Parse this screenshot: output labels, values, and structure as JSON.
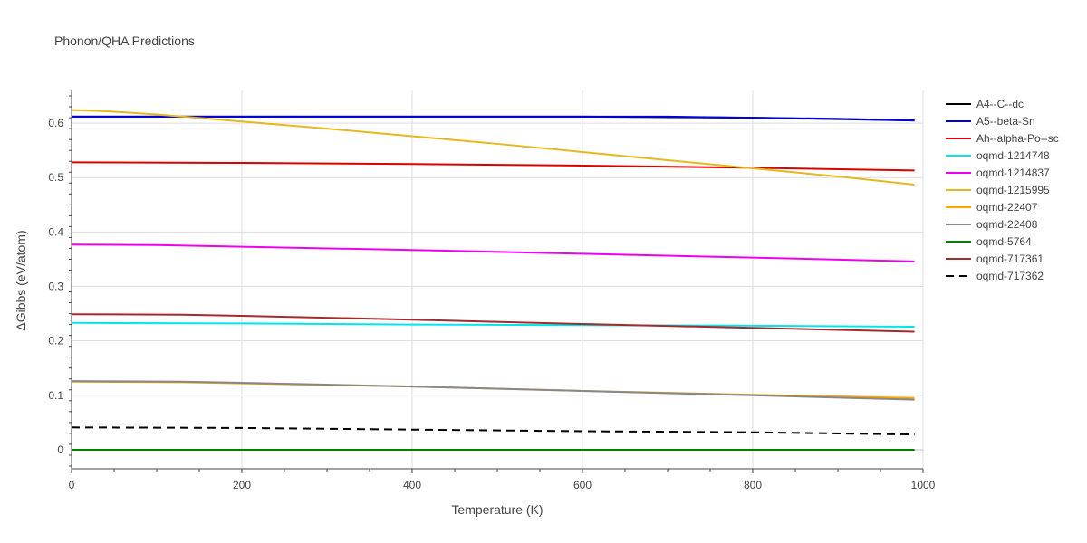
{
  "chart_data": {
    "type": "line",
    "title": "Phonon/QHA Predictions",
    "xlabel": "Temperature (K)",
    "ylabel": "ΔGibbs (eV/atom)",
    "xlim": [
      0,
      1000
    ],
    "ylim": [
      -0.035,
      0.66
    ],
    "x_ticks": [
      0,
      200,
      400,
      600,
      800,
      1000
    ],
    "y_ticks": [
      0,
      0.1,
      0.2,
      0.3,
      0.4,
      0.5,
      0.6
    ],
    "x_tick_labels": [
      "0",
      "200",
      "400",
      "600",
      "800",
      "1000"
    ],
    "y_tick_labels": [
      "0",
      "0.1",
      "0.2",
      "0.3",
      "0.4",
      "0.5",
      "0.6"
    ],
    "grid": true,
    "legend_position": "right",
    "series": [
      {
        "name": "A4--C--dc",
        "color": "#000000",
        "dash": "solid",
        "x": [
          0,
          200,
          400,
          600,
          800,
          990
        ],
        "y": [
          0.612,
          0.612,
          0.612,
          0.612,
          0.61,
          0.605
        ]
      },
      {
        "name": "A5--beta-Sn",
        "color": "#0000dd",
        "dash": "solid",
        "x": [
          0,
          100,
          200,
          300,
          400,
          500,
          600,
          700,
          800,
          900,
          990
        ],
        "y": [
          0.612,
          0.612,
          0.612,
          0.612,
          0.612,
          0.612,
          0.612,
          0.612,
          0.61,
          0.608,
          0.605
        ]
      },
      {
        "name": "Ah--alpha-Po--sc",
        "color": "#dd0000",
        "dash": "solid",
        "x": [
          0,
          200,
          400,
          600,
          800,
          990
        ],
        "y": [
          0.528,
          0.527,
          0.525,
          0.522,
          0.518,
          0.513
        ]
      },
      {
        "name": "oqmd-1214748",
        "color": "#00e5ee",
        "dash": "solid",
        "x": [
          0,
          200,
          400,
          600,
          800,
          990
        ],
        "y": [
          0.233,
          0.232,
          0.23,
          0.229,
          0.228,
          0.226
        ]
      },
      {
        "name": "oqmd-1214837",
        "color": "#ee00ee",
        "dash": "solid",
        "x": [
          0,
          100,
          200,
          400,
          600,
          800,
          990
        ],
        "y": [
          0.377,
          0.376,
          0.373,
          0.367,
          0.36,
          0.353,
          0.346
        ]
      },
      {
        "name": "oqmd-1215995",
        "color": "#e5b820",
        "dash": "solid",
        "x": [
          0,
          40,
          100,
          200,
          300,
          400,
          500,
          600,
          700,
          800,
          900,
          990
        ],
        "y": [
          0.624,
          0.622,
          0.616,
          0.603,
          0.59,
          0.576,
          0.562,
          0.547,
          0.532,
          0.517,
          0.502,
          0.487
        ]
      },
      {
        "name": "oqmd-22407",
        "color": "#ffa500",
        "dash": "solid",
        "x": [
          0,
          130,
          200,
          400,
          600,
          800,
          990
        ],
        "y": [
          0.125,
          0.124,
          0.122,
          0.116,
          0.108,
          0.101,
          0.095
        ]
      },
      {
        "name": "oqmd-22408",
        "color": "#888888",
        "dash": "solid",
        "x": [
          0,
          130,
          200,
          400,
          600,
          800,
          990
        ],
        "y": [
          0.126,
          0.125,
          0.123,
          0.116,
          0.108,
          0.1,
          0.092
        ]
      },
      {
        "name": "oqmd-5764",
        "color": "#008000",
        "dash": "solid",
        "x": [
          0,
          990
        ],
        "y": [
          0,
          0
        ]
      },
      {
        "name": "oqmd-717361",
        "color": "#a52a2a",
        "dash": "solid",
        "x": [
          0,
          130,
          200,
          400,
          600,
          800,
          990
        ],
        "y": [
          0.249,
          0.248,
          0.246,
          0.239,
          0.231,
          0.224,
          0.217
        ]
      },
      {
        "name": "oqmd-717362",
        "color": "#000000",
        "dash": "dash",
        "x": [
          0,
          200,
          400,
          600,
          800,
          990
        ],
        "y": [
          0.041,
          0.04,
          0.037,
          0.034,
          0.032,
          0.028
        ]
      }
    ]
  }
}
